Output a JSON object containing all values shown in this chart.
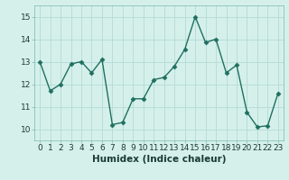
{
  "x": [
    0,
    1,
    2,
    3,
    4,
    5,
    6,
    7,
    8,
    9,
    10,
    11,
    12,
    13,
    14,
    15,
    16,
    17,
    18,
    19,
    20,
    21,
    22,
    23
  ],
  "y": [
    13.0,
    11.7,
    12.0,
    12.9,
    13.0,
    12.5,
    13.1,
    10.2,
    10.3,
    11.35,
    11.35,
    12.2,
    12.3,
    12.8,
    13.55,
    15.0,
    13.85,
    14.0,
    12.5,
    12.85,
    10.75,
    10.1,
    10.15,
    11.6
  ],
  "line_color": "#1f6f60",
  "marker_color": "#1f6f60",
  "bg_color": "#d5f0eb",
  "grid_color": "#b8ddd8",
  "xlabel": "Humidex (Indice chaleur)",
  "xlim": [
    -0.5,
    23.5
  ],
  "ylim": [
    9.5,
    15.5
  ],
  "yticks": [
    10,
    11,
    12,
    13,
    14,
    15
  ],
  "xticks": [
    0,
    1,
    2,
    3,
    4,
    5,
    6,
    7,
    8,
    9,
    10,
    11,
    12,
    13,
    14,
    15,
    16,
    17,
    18,
    19,
    20,
    21,
    22,
    23
  ],
  "tick_fontsize": 6.5,
  "xlabel_fontsize": 7.5,
  "marker_size": 2.5,
  "line_width": 1.0
}
